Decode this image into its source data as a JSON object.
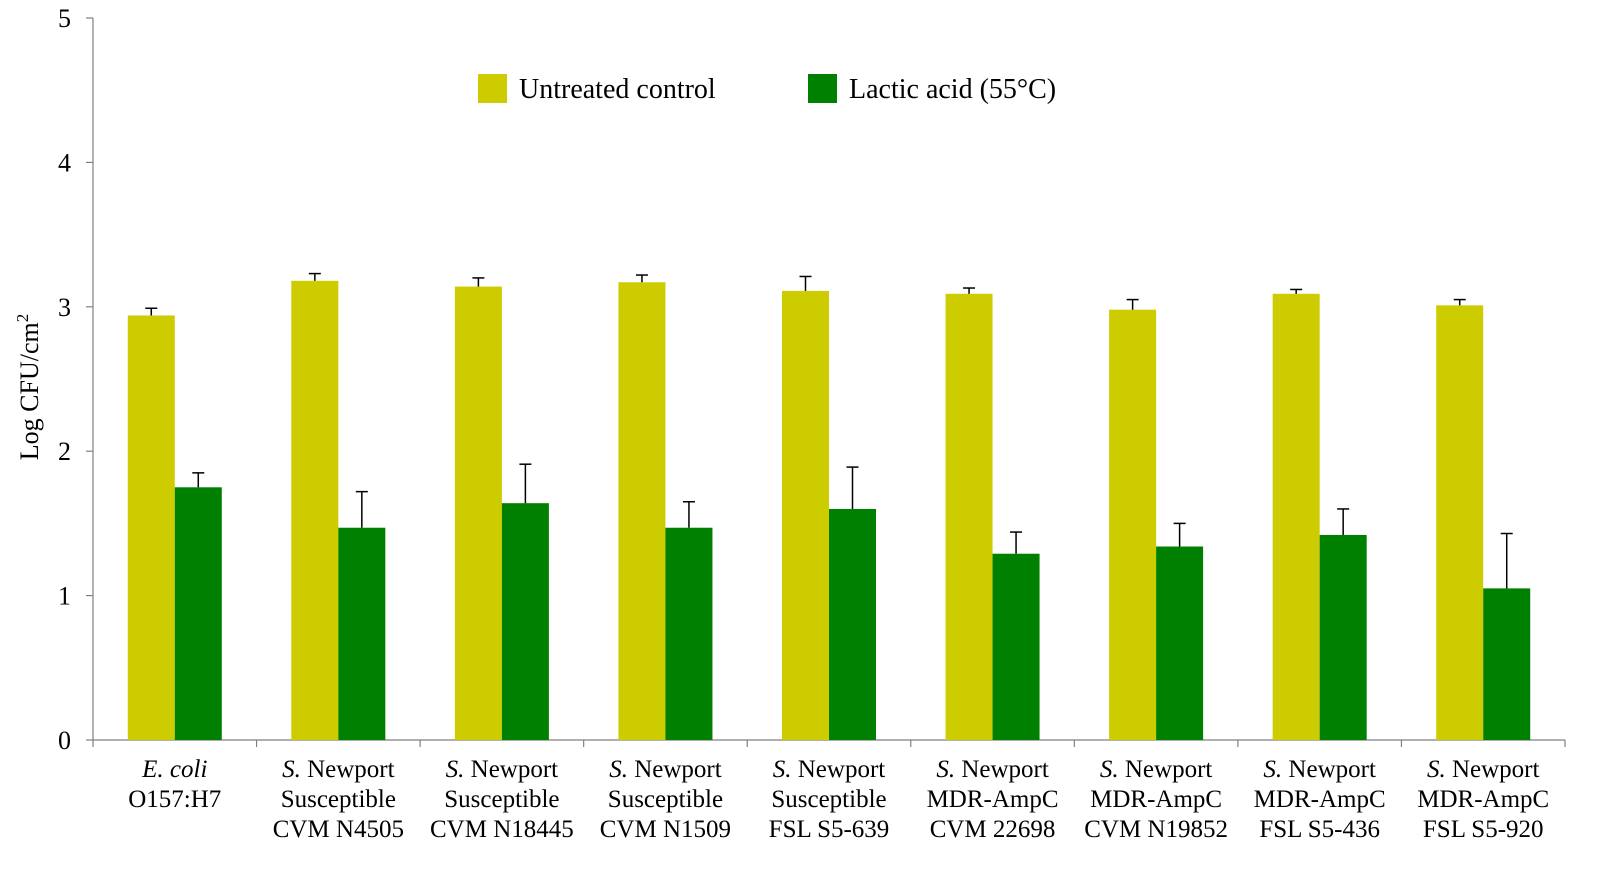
{
  "chart_data": {
    "type": "bar",
    "ylabel": "Log CFU/cm",
    "ylabel_superscript": "2",
    "ylim": [
      0,
      5
    ],
    "yticks": [
      "0",
      "1",
      "2",
      "3",
      "4",
      "5"
    ],
    "grid": false,
    "legend_position": "top-center",
    "categories": [
      {
        "lines": [
          {
            "italic": "E. coli",
            "rest": ""
          },
          {
            "italic": "",
            "rest": "O157:H7"
          }
        ]
      },
      {
        "lines": [
          {
            "italic": "S.",
            "rest": " Newport"
          },
          {
            "italic": "",
            "rest": "Susceptible"
          },
          {
            "italic": "",
            "rest": "CVM N4505"
          }
        ]
      },
      {
        "lines": [
          {
            "italic": "S.",
            "rest": " Newport"
          },
          {
            "italic": "",
            "rest": "Susceptible"
          },
          {
            "italic": "",
            "rest": "CVM N18445"
          }
        ]
      },
      {
        "lines": [
          {
            "italic": "S.",
            "rest": " Newport"
          },
          {
            "italic": "",
            "rest": "Susceptible"
          },
          {
            "italic": "",
            "rest": "CVM N1509"
          }
        ]
      },
      {
        "lines": [
          {
            "italic": "S.",
            "rest": " Newport"
          },
          {
            "italic": "",
            "rest": "Susceptible"
          },
          {
            "italic": "",
            "rest": "FSL S5-639"
          }
        ]
      },
      {
        "lines": [
          {
            "italic": "S.",
            "rest": " Newport"
          },
          {
            "italic": "",
            "rest": "MDR-AmpC"
          },
          {
            "italic": "",
            "rest": "CVM 22698"
          }
        ]
      },
      {
        "lines": [
          {
            "italic": "S.",
            "rest": " Newport"
          },
          {
            "italic": "",
            "rest": "MDR-AmpC"
          },
          {
            "italic": "",
            "rest": "CVM N19852"
          }
        ]
      },
      {
        "lines": [
          {
            "italic": "S.",
            "rest": " Newport"
          },
          {
            "italic": "",
            "rest": "MDR-AmpC"
          },
          {
            "italic": "",
            "rest": "FSL S5-436"
          }
        ]
      },
      {
        "lines": [
          {
            "italic": "S.",
            "rest": " Newport"
          },
          {
            "italic": "",
            "rest": "MDR-AmpC"
          },
          {
            "italic": "",
            "rest": "FSL S5-920"
          }
        ]
      }
    ],
    "series": [
      {
        "name": "Untreated control",
        "color": "#cccc00",
        "values": [
          2.94,
          3.18,
          3.14,
          3.17,
          3.11,
          3.09,
          2.98,
          3.09,
          3.01
        ],
        "errors": [
          0.05,
          0.05,
          0.06,
          0.05,
          0.1,
          0.04,
          0.07,
          0.03,
          0.04
        ]
      },
      {
        "name": "Lactic acid (55°C)",
        "color": "#008000",
        "values": [
          1.75,
          1.47,
          1.64,
          1.47,
          1.6,
          1.29,
          1.34,
          1.42,
          1.05
        ],
        "errors": [
          0.1,
          0.25,
          0.27,
          0.18,
          0.29,
          0.15,
          0.16,
          0.18,
          0.38
        ]
      }
    ]
  }
}
